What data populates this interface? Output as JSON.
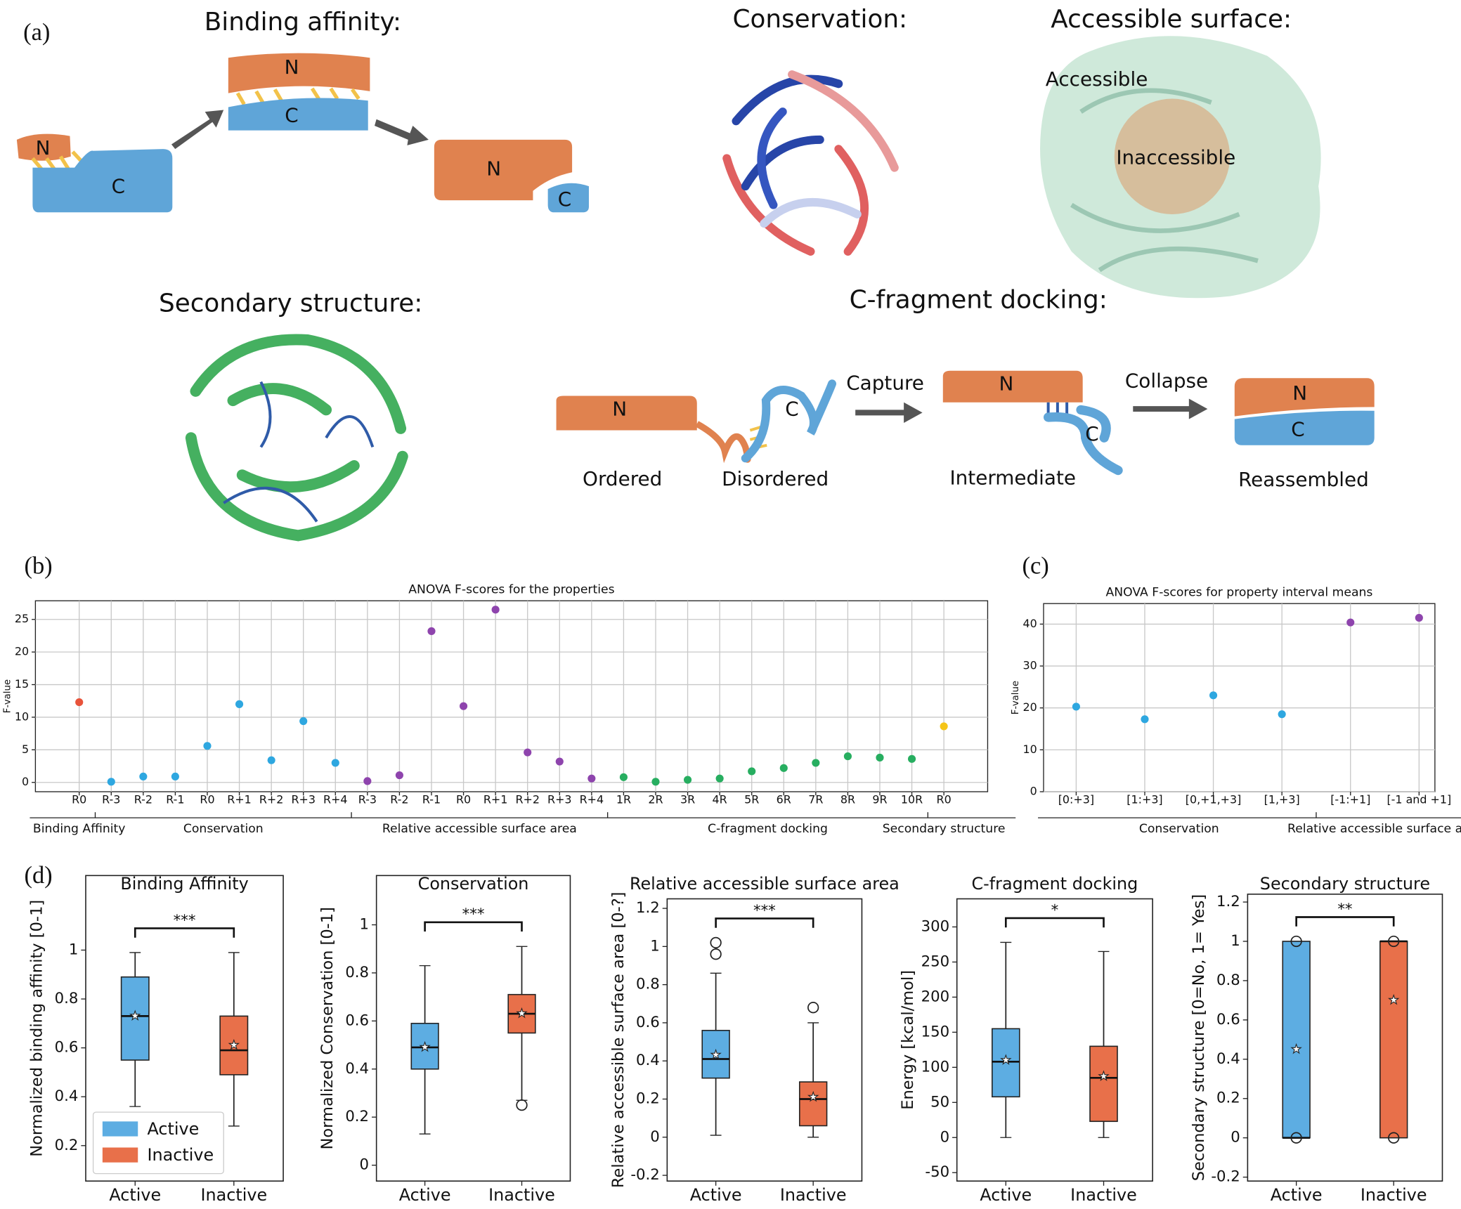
{
  "panels": [
    "(a)",
    "(b)",
    "(c)",
    "(d)"
  ],
  "diagram": {
    "headings": [
      "Binding affinity:",
      "Conservation:",
      "Accessible surface:",
      "Secondary structure:",
      "C-fragment docking:"
    ],
    "surface_labels": [
      "Accessible",
      "Inaccessible"
    ],
    "binding_letters": [
      "N",
      "C",
      "N",
      "C",
      "N",
      "C"
    ],
    "docking_letters": [
      "N",
      "C",
      "N",
      "C",
      "N",
      "C"
    ],
    "docking_steps": [
      "Capture",
      "Collapse"
    ],
    "docking_states": [
      "Ordered",
      "Disordered",
      "Intermediate",
      "Reassembled"
    ]
  },
  "chart_data": [
    {
      "type": "scatter",
      "title": "ANOVA F-scores for the properties",
      "ylabel": "F-value",
      "ylim": [
        -1.43,
        27.86
      ],
      "yticks": [
        0,
        5,
        10,
        15,
        20,
        25
      ],
      "grid": true,
      "groups": [
        {
          "name": "Binding Affinity",
          "color": "#e8533a",
          "categories": [
            "R0"
          ],
          "values": [
            12.3
          ]
        },
        {
          "name": "Conservation",
          "color": "#2ea7e0",
          "categories": [
            "R-3",
            "R-2",
            "R-1",
            "R0",
            "R+1",
            "R+2",
            "R+3",
            "R+4"
          ],
          "values": [
            0.1,
            0.9,
            0.9,
            5.6,
            12.0,
            3.4,
            9.4,
            3.0
          ]
        },
        {
          "name": "Relative accessible surface area",
          "color": "#8e44ad",
          "categories": [
            "R-3",
            "R-2",
            "R-1",
            "R0",
            "R+1",
            "R+2",
            "R+3",
            "R+4"
          ],
          "values": [
            0.2,
            1.1,
            23.2,
            11.7,
            26.5,
            4.6,
            3.2,
            0.6
          ]
        },
        {
          "name": "C-fragment docking",
          "color": "#27ae60",
          "categories": [
            "1R",
            "2R",
            "3R",
            "4R",
            "5R",
            "6R",
            "7R",
            "8R",
            "9R",
            "10R"
          ],
          "values": [
            0.8,
            0.1,
            0.4,
            0.6,
            1.7,
            2.2,
            3.0,
            4.0,
            3.8,
            3.6
          ]
        },
        {
          "name": "Secondary structure",
          "color": "#f5c518",
          "categories": [
            "R0"
          ],
          "values": [
            8.6
          ]
        }
      ]
    },
    {
      "type": "scatter",
      "title": "ANOVA F-scores for property interval means",
      "ylabel": "F-value",
      "ylim": [
        0,
        44.9
      ],
      "yticks": [
        0,
        10,
        20,
        30,
        40
      ],
      "grid": true,
      "groups": [
        {
          "name": "Conservation",
          "color": "#2ea7e0",
          "categories": [
            "[0:+3]",
            "[1:+3]",
            "[0,+1,+3]",
            "[1,+3]"
          ],
          "values": [
            20.3,
            17.3,
            23.0,
            18.5
          ]
        },
        {
          "name": "Relative accessible surface area",
          "color": "#8e44ad",
          "categories": [
            "[-1:+1]",
            "[-1 and +1]"
          ],
          "values": [
            40.4,
            41.5
          ]
        }
      ]
    },
    {
      "type": "box",
      "title": "Binding Affinity",
      "ylabel": "Normalized binding affinity [0-1]",
      "significance": "***",
      "ylim": [
        0.055,
        1.305
      ],
      "yticks": [
        0.2,
        0.4,
        0.6,
        0.8,
        1.0
      ],
      "legend": "lower left",
      "categories": [
        "Active",
        "Inactive"
      ],
      "colors": [
        "#5dade2",
        "#e8704a"
      ],
      "boxes": [
        {
          "q1": 0.55,
          "median": 0.73,
          "q3": 0.89,
          "whislo": 0.36,
          "whishi": 0.99,
          "mean": 0.73,
          "fliers": []
        },
        {
          "q1": 0.49,
          "median": 0.59,
          "q3": 0.73,
          "whislo": 0.28,
          "whishi": 0.99,
          "mean": 0.61,
          "fliers": []
        }
      ]
    },
    {
      "type": "box",
      "title": "Conservation",
      "ylabel": "Normalized Conservation [0-1]",
      "significance": "***",
      "ylim": [
        -0.066,
        1.205
      ],
      "yticks": [
        0.0,
        0.2,
        0.4,
        0.6,
        0.8,
        1.0
      ],
      "categories": [
        "Active",
        "Inactive"
      ],
      "colors": [
        "#5dade2",
        "#e8704a"
      ],
      "boxes": [
        {
          "q1": 0.4,
          "median": 0.49,
          "q3": 0.59,
          "whislo": 0.13,
          "whishi": 0.83,
          "mean": 0.49,
          "fliers": []
        },
        {
          "q1": 0.55,
          "median": 0.63,
          "q3": 0.71,
          "whislo": 0.27,
          "whishi": 0.91,
          "mean": 0.63,
          "fliers": [
            0.25
          ]
        }
      ]
    },
    {
      "type": "box",
      "title": "Relative accessible surface area",
      "ylabel": "Relative accessible surface area [0-?]",
      "significance": "***",
      "ylim": [
        -0.23,
        1.25
      ],
      "yticks": [
        -0.2,
        0.0,
        0.2,
        0.4,
        0.6,
        0.8,
        1.0,
        1.2
      ],
      "categories": [
        "Active",
        "Inactive"
      ],
      "colors": [
        "#5dade2",
        "#e8704a"
      ],
      "boxes": [
        {
          "q1": 0.31,
          "median": 0.41,
          "q3": 0.56,
          "whislo": 0.01,
          "whishi": 0.86,
          "mean": 0.43,
          "fliers": [
            0.96,
            1.02
          ]
        },
        {
          "q1": 0.06,
          "median": 0.2,
          "q3": 0.29,
          "whislo": 0.0,
          "whishi": 0.6,
          "mean": 0.21,
          "fliers": [
            0.68
          ]
        }
      ]
    },
    {
      "type": "box",
      "title": "C-fragment docking",
      "ylabel": "Energy [kcal/mol]",
      "significance": "*",
      "ylim": [
        -62,
        340
      ],
      "yticks": [
        -50,
        0,
        50,
        100,
        150,
        200,
        250,
        300
      ],
      "categories": [
        "Active",
        "Inactive"
      ],
      "colors": [
        "#5dade2",
        "#e8704a"
      ],
      "boxes": [
        {
          "q1": 58,
          "median": 108,
          "q3": 155,
          "whislo": 0,
          "whishi": 278,
          "mean": 110,
          "fliers": []
        },
        {
          "q1": 23,
          "median": 85,
          "q3": 130,
          "whislo": 0,
          "whishi": 265,
          "mean": 87,
          "fliers": []
        }
      ]
    },
    {
      "type": "box",
      "title": "Secondary structure",
      "ylabel": "Secondary structure [0=No, 1= Yes]",
      "significance": "**",
      "ylim": [
        -0.22,
        1.24
      ],
      "yticks": [
        -0.2,
        0.0,
        0.2,
        0.4,
        0.6,
        0.8,
        1.0,
        1.2
      ],
      "categories": [
        "Active",
        "Inactive"
      ],
      "colors": [
        "#5dade2",
        "#e8704a"
      ],
      "boxes": [
        {
          "q1": 0,
          "median": 0,
          "q3": 1,
          "whislo": 0,
          "whishi": 1,
          "mean": 0.45,
          "fliers": [
            0,
            1
          ]
        },
        {
          "q1": 0,
          "median": 1,
          "q3": 1,
          "whislo": 0,
          "whishi": 1,
          "mean": 0.7,
          "fliers": [
            0,
            1
          ]
        }
      ]
    }
  ]
}
